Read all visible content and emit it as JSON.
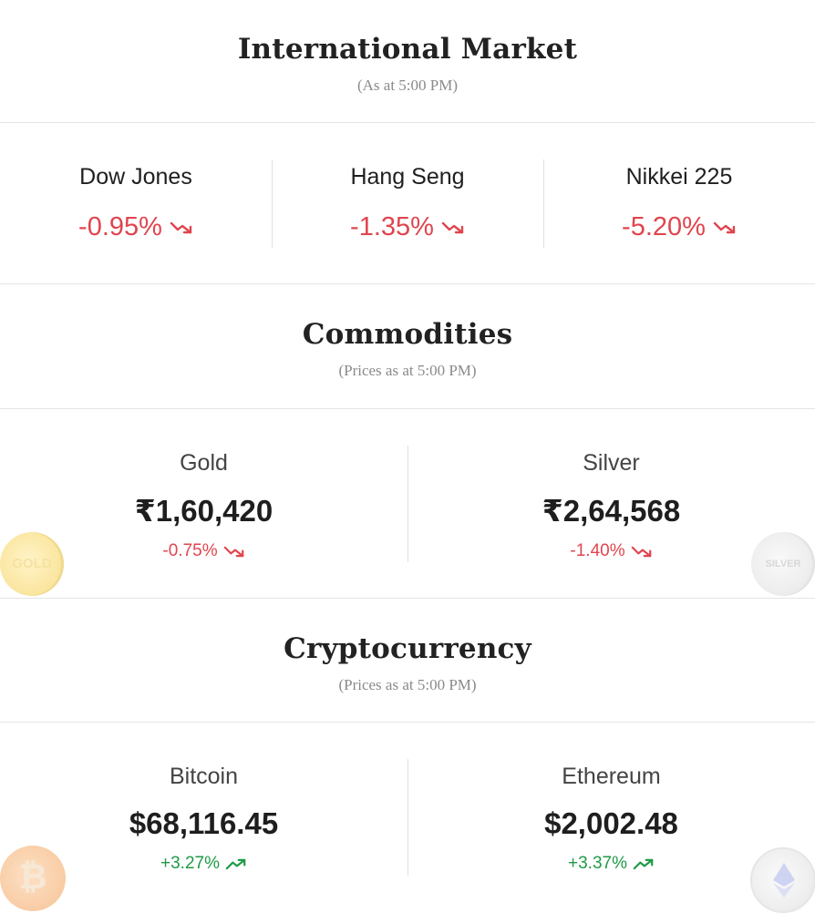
{
  "international": {
    "title": "International Market",
    "subtitle": "(As at 5:00 PM)",
    "indices": [
      {
        "name": "Dow Jones",
        "change": "-0.95%",
        "direction": "down"
      },
      {
        "name": "Hang Seng",
        "change": "-1.35%",
        "direction": "down"
      },
      {
        "name": "Nikkei 225",
        "change": "-5.20%",
        "direction": "down"
      }
    ]
  },
  "commodities": {
    "title": "Commodities",
    "subtitle": "(Prices as at 5:00 PM)",
    "items": [
      {
        "name": "Gold",
        "price": "₹1,60,420",
        "change": "-0.75%",
        "direction": "down",
        "coin_label": "GOLD"
      },
      {
        "name": "Silver",
        "price": "₹2,64,568",
        "change": "-1.40%",
        "direction": "down",
        "coin_label": "SILVER"
      }
    ]
  },
  "crypto": {
    "title": "Cryptocurrency",
    "subtitle": "(Prices as at 5:00 PM)",
    "items": [
      {
        "name": "Bitcoin",
        "price": "$68,116.45",
        "change": "+3.27%",
        "direction": "up",
        "coin_glyph": "₿"
      },
      {
        "name": "Ethereum",
        "price": "$2,002.48",
        "change": "+3.37%",
        "direction": "up"
      }
    ]
  },
  "colors": {
    "negative": "#e0454e",
    "positive": "#1f9a46"
  }
}
